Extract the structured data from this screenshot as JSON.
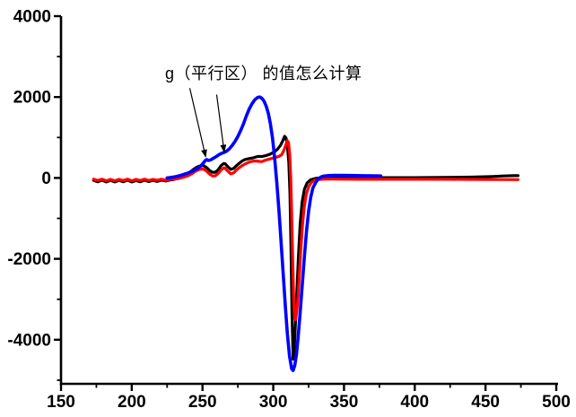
{
  "figure": {
    "background": "#ffffff",
    "axis_color": "#000000"
  },
  "chart_data": {
    "type": "line",
    "title": "",
    "xlabel": "",
    "ylabel": "",
    "grid": false,
    "legend": "none",
    "xlim": [
      150,
      500
    ],
    "ylim": [
      -5090,
      4000
    ],
    "x_major_ticks": [
      150,
      200,
      250,
      300,
      350,
      400,
      450,
      500
    ],
    "x_minor_ticks": [
      175,
      225,
      275,
      325,
      375,
      425,
      475
    ],
    "y_major_ticks": [
      -4000,
      -2000,
      0,
      2000,
      4000
    ],
    "y_minor_ticks": [
      -5000,
      -3000,
      -1000,
      1000,
      3000
    ],
    "annotation": {
      "text": "g（平行区） 的值怎么计算",
      "x": 224,
      "y": 2670,
      "arrows": [
        {
          "from": {
            "x": 241,
            "y": 2220
          },
          "to": {
            "x": 252.4,
            "y": 500
          }
        },
        {
          "from": {
            "x": 260,
            "y": 2060
          },
          "to": {
            "x": 265.4,
            "y": 620
          }
        }
      ]
    },
    "series": [
      {
        "name": "black-spectrum",
        "color": "#000000",
        "width": 3.2,
        "points": [
          [
            173,
            -60
          ],
          [
            176,
            -95
          ],
          [
            179,
            -55
          ],
          [
            182,
            -100
          ],
          [
            185,
            -60
          ],
          [
            188,
            -100
          ],
          [
            191,
            -60
          ],
          [
            194,
            -95
          ],
          [
            197,
            -55
          ],
          [
            200,
            -100
          ],
          [
            203,
            -65
          ],
          [
            206,
            -95
          ],
          [
            209,
            -55
          ],
          [
            212,
            -90
          ],
          [
            215,
            -60
          ],
          [
            218,
            -85
          ],
          [
            221,
            -55
          ],
          [
            224,
            -75
          ],
          [
            227,
            -50
          ],
          [
            230,
            -35
          ],
          [
            233,
            -5
          ],
          [
            236,
            45
          ],
          [
            239,
            95
          ],
          [
            241,
            140
          ],
          [
            243,
            195
          ],
          [
            245,
            245
          ],
          [
            247,
            285
          ],
          [
            249,
            305
          ],
          [
            251,
            300
          ],
          [
            253,
            255
          ],
          [
            255,
            185
          ],
          [
            257,
            140
          ],
          [
            259,
            140
          ],
          [
            261,
            200
          ],
          [
            263,
            300
          ],
          [
            265,
            358
          ],
          [
            266,
            350
          ],
          [
            268,
            275
          ],
          [
            270,
            210
          ],
          [
            272,
            235
          ],
          [
            274,
            305
          ],
          [
            276,
            365
          ],
          [
            278,
            420
          ],
          [
            280,
            455
          ],
          [
            283,
            480
          ],
          [
            286,
            500
          ],
          [
            289,
            530
          ],
          [
            292,
            530
          ],
          [
            295,
            555
          ],
          [
            298,
            590
          ],
          [
            301,
            650
          ],
          [
            303,
            710
          ],
          [
            305,
            800
          ],
          [
            306.5,
            900
          ],
          [
            308,
            1030
          ],
          [
            309,
            990
          ],
          [
            310,
            800
          ],
          [
            311,
            380
          ],
          [
            311.8,
            -400
          ],
          [
            312.5,
            -1700
          ],
          [
            313.2,
            -3300
          ],
          [
            314,
            -4480
          ],
          [
            314.8,
            -4250
          ],
          [
            315.6,
            -3650
          ],
          [
            316.6,
            -2850
          ],
          [
            317.8,
            -1950
          ],
          [
            319,
            -1150
          ],
          [
            320.4,
            -600
          ],
          [
            322,
            -280
          ],
          [
            324,
            -120
          ],
          [
            326.5,
            -45
          ],
          [
            330,
            -10
          ],
          [
            335,
            5
          ],
          [
            345,
            5
          ],
          [
            360,
            5
          ],
          [
            380,
            8
          ],
          [
            400,
            8
          ],
          [
            420,
            12
          ],
          [
            440,
            20
          ],
          [
            455,
            35
          ],
          [
            463,
            50
          ],
          [
            470,
            55
          ],
          [
            473,
            55
          ]
        ]
      },
      {
        "name": "red-spectrum",
        "color": "#ff0000",
        "width": 3.2,
        "points": [
          [
            173,
            -30
          ],
          [
            176,
            -65
          ],
          [
            179,
            -30
          ],
          [
            182,
            -70
          ],
          [
            185,
            -35
          ],
          [
            188,
            -70
          ],
          [
            191,
            -35
          ],
          [
            194,
            -65
          ],
          [
            197,
            -30
          ],
          [
            200,
            -70
          ],
          [
            203,
            -35
          ],
          [
            206,
            -65
          ],
          [
            209,
            -30
          ],
          [
            212,
            -65
          ],
          [
            215,
            -35
          ],
          [
            218,
            -60
          ],
          [
            221,
            -30
          ],
          [
            224,
            -55
          ],
          [
            227,
            -30
          ],
          [
            230,
            -25
          ],
          [
            233,
            -15
          ],
          [
            236,
            10
          ],
          [
            239,
            45
          ],
          [
            241,
            75
          ],
          [
            243,
            115
          ],
          [
            245,
            165
          ],
          [
            247,
            200
          ],
          [
            249,
            220
          ],
          [
            251,
            215
          ],
          [
            253,
            165
          ],
          [
            255,
            95
          ],
          [
            257,
            50
          ],
          [
            259,
            52
          ],
          [
            261,
            110
          ],
          [
            263,
            195
          ],
          [
            265,
            248
          ],
          [
            266,
            240
          ],
          [
            268,
            165
          ],
          [
            270,
            100
          ],
          [
            272,
            125
          ],
          [
            274,
            195
          ],
          [
            276,
            255
          ],
          [
            278,
            305
          ],
          [
            280,
            345
          ],
          [
            282,
            378
          ],
          [
            284,
            402
          ],
          [
            286,
            418
          ],
          [
            288,
            420
          ],
          [
            290,
            408
          ],
          [
            292,
            405
          ],
          [
            294,
            432
          ],
          [
            296,
            455
          ],
          [
            298,
            472
          ],
          [
            300,
            492
          ],
          [
            302,
            512
          ],
          [
            304,
            532
          ],
          [
            306,
            575
          ],
          [
            307.5,
            680
          ],
          [
            309,
            830
          ],
          [
            310,
            918
          ],
          [
            310.8,
            875
          ],
          [
            311.6,
            580
          ],
          [
            312.3,
            50
          ],
          [
            313,
            -900
          ],
          [
            313.8,
            -2050
          ],
          [
            314.5,
            -3050
          ],
          [
            315.2,
            -3480
          ],
          [
            315.8,
            -3500
          ],
          [
            316.5,
            -3330
          ],
          [
            317.5,
            -2950
          ],
          [
            318.5,
            -2380
          ],
          [
            319.5,
            -1750
          ],
          [
            320.6,
            -1180
          ],
          [
            321.8,
            -740
          ],
          [
            323.2,
            -420
          ],
          [
            325,
            -220
          ],
          [
            327,
            -105
          ],
          [
            329.5,
            -55
          ],
          [
            332,
            -38
          ],
          [
            336,
            -30
          ],
          [
            342,
            -28
          ],
          [
            350,
            -30
          ],
          [
            362,
            -32
          ],
          [
            375,
            -32
          ],
          [
            390,
            -32
          ],
          [
            405,
            -32
          ],
          [
            420,
            -33
          ],
          [
            435,
            -35
          ],
          [
            450,
            -38
          ],
          [
            462,
            -40
          ],
          [
            473,
            -42
          ]
        ]
      },
      {
        "name": "blue-spectrum",
        "color": "#0000ff",
        "width": 3.6,
        "points": [
          [
            225,
            0
          ],
          [
            227,
            10
          ],
          [
            229,
            20
          ],
          [
            231,
            32
          ],
          [
            233,
            50
          ],
          [
            235,
            68
          ],
          [
            237,
            88
          ],
          [
            239,
            112
          ],
          [
            241,
            142
          ],
          [
            243,
            172
          ],
          [
            245,
            205
          ],
          [
            247,
            248
          ],
          [
            249,
            305
          ],
          [
            250.5,
            365
          ],
          [
            252,
            432
          ],
          [
            253,
            452
          ],
          [
            254,
            432
          ],
          [
            255.5,
            442
          ],
          [
            257,
            472
          ],
          [
            259,
            512
          ],
          [
            261,
            562
          ],
          [
            263,
            602
          ],
          [
            265,
            628
          ],
          [
            267,
            662
          ],
          [
            269,
            722
          ],
          [
            271,
            802
          ],
          [
            273,
            905
          ],
          [
            275,
            1025
          ],
          [
            277,
            1175
          ],
          [
            279,
            1345
          ],
          [
            281,
            1535
          ],
          [
            283,
            1705
          ],
          [
            285,
            1835
          ],
          [
            287,
            1935
          ],
          [
            289,
            1992
          ],
          [
            290.5,
            2000
          ],
          [
            292,
            1968
          ],
          [
            293.5,
            1898
          ],
          [
            295,
            1775
          ],
          [
            296.5,
            1595
          ],
          [
            298,
            1335
          ],
          [
            299.5,
            975
          ],
          [
            301,
            495
          ],
          [
            302.5,
            -110
          ],
          [
            304,
            -805
          ],
          [
            305.5,
            -1555
          ],
          [
            307,
            -2355
          ],
          [
            308.5,
            -3155
          ],
          [
            310,
            -3855
          ],
          [
            311.5,
            -4405
          ],
          [
            313,
            -4720
          ],
          [
            314,
            -4760
          ],
          [
            315.2,
            -4640
          ],
          [
            316.4,
            -4370
          ],
          [
            317.6,
            -3940
          ],
          [
            319,
            -3340
          ],
          [
            320.5,
            -2640
          ],
          [
            322,
            -1940
          ],
          [
            323.5,
            -1320
          ],
          [
            325,
            -820
          ],
          [
            326.5,
            -470
          ],
          [
            328,
            -250
          ],
          [
            330,
            -110
          ],
          [
            332,
            -15
          ],
          [
            334,
            30
          ],
          [
            336,
            48
          ],
          [
            339,
            58
          ],
          [
            343,
            62
          ],
          [
            348,
            62
          ],
          [
            355,
            60
          ],
          [
            363,
            55
          ],
          [
            370,
            52
          ],
          [
            376,
            50
          ]
        ]
      }
    ]
  }
}
